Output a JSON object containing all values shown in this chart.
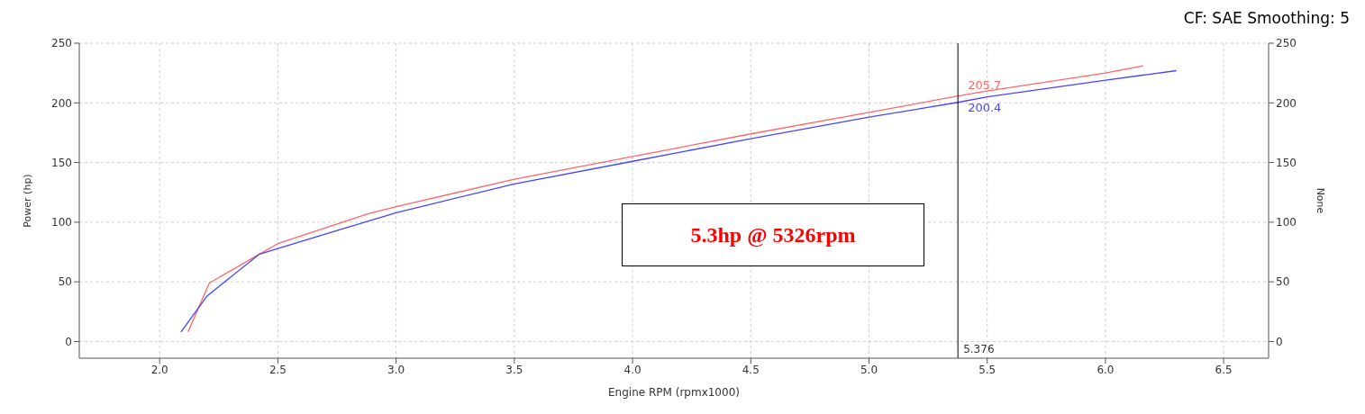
{
  "chart_data": {
    "type": "line",
    "subtitle": "CF: SAE Smoothing: 5",
    "xlabel": "Engine RPM (rpmx1000)",
    "ylabel": "Power (hp)",
    "y2label": "None",
    "xlim": [
      1.66,
      6.69
    ],
    "xticks": [
      {
        "value": 2,
        "label": "2.0"
      },
      {
        "value": 2.5,
        "label": "2.5"
      },
      {
        "value": 3,
        "label": "3.0"
      },
      {
        "value": 3.5,
        "label": "3.5"
      },
      {
        "value": 4,
        "label": "4.0"
      },
      {
        "value": 4.5,
        "label": "4.5"
      },
      {
        "value": 5,
        "label": "5.0"
      },
      {
        "value": 5.5,
        "label": "5.5"
      },
      {
        "value": 6,
        "label": "6.0"
      },
      {
        "value": 6.5,
        "label": "6.5"
      }
    ],
    "ylim": [
      -14,
      250
    ],
    "yticks": [
      0,
      50,
      100,
      150,
      200,
      250
    ],
    "y2lim": [
      -14,
      250
    ],
    "y2ticks": [
      0,
      50,
      100,
      150,
      200,
      250
    ],
    "grid": true,
    "line_style": "solid",
    "marker": "none",
    "series": [
      {
        "color": "#ff6666",
        "x": [
          2.12,
          2.21,
          2.42,
          2.5,
          2.88,
          3.0,
          3.5,
          4.0,
          4.5,
          5.0,
          5.376,
          5.5,
          6.0,
          6.16
        ],
        "values": [
          8,
          49,
          73,
          82,
          107,
          113,
          136,
          155,
          174,
          192,
          205.7,
          210,
          225,
          231
        ]
      },
      {
        "color": "#4444ff",
        "x": [
          2.09,
          2.2,
          2.42,
          2.5,
          3.0,
          3.5,
          4.0,
          4.5,
          5.0,
          5.376,
          5.5,
          6.0,
          6.3
        ],
        "values": [
          8,
          38,
          73,
          78,
          108,
          132,
          151,
          170,
          188,
          200.4,
          205,
          219,
          227
        ]
      }
    ],
    "ref_lines": [
      {
        "axis": "x",
        "value": 5.376,
        "label": "5.376",
        "color": "#000000"
      }
    ],
    "annotations": [
      {
        "text": "205.7",
        "x": 5.376,
        "y": 205.7
      },
      {
        "text": "200.4",
        "x": 5.376,
        "y": 200.4
      },
      "5.3hp @ 5326rpm"
    ]
  }
}
